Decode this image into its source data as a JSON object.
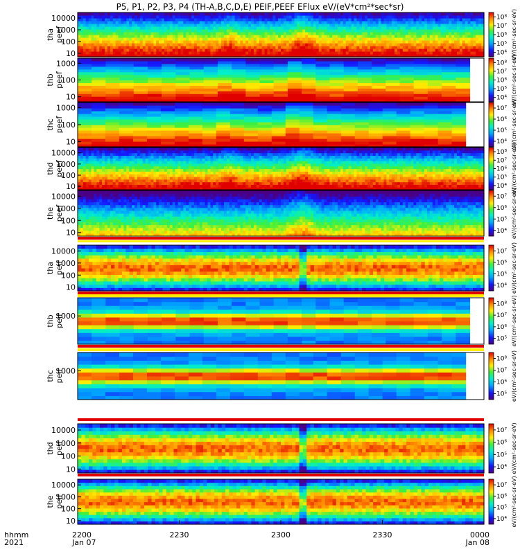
{
  "chart_data": {
    "type": "heatmap",
    "title": "P5, P1, P2, P3, P4 (TH-A,B,C,D,E) PEIF,PEEF EFlux eV/(eV*cm²*sec*sr)",
    "time_axis": {
      "ticks": [
        "2200",
        "2230",
        "2300",
        "2330",
        "0000"
      ],
      "tick_dates": [
        "Jan 07",
        "",
        "",
        "",
        "Jan 08"
      ],
      "range": [
        "2021-01-07 22:00",
        "2021-01-08 00:00"
      ],
      "label_lines": [
        "hhmm",
        "2021"
      ]
    },
    "energy_axis_scale": "log",
    "colormap": "rainbow (purple-blue-cyan-green-yellow-orange-red)",
    "panels": [
      {
        "probe": "tha",
        "product": "peef",
        "ylim": [
          5,
          30000
        ],
        "yticks": [
          "10",
          "100",
          "1000",
          "10000"
        ],
        "colorbar_ticks": [
          "10⁴",
          "10⁵",
          "10⁶",
          "10⁷",
          "10⁸"
        ],
        "colorbar_label": "eV/(cm²-sec-sr-eV)"
      },
      {
        "probe": "thb",
        "product": "peef",
        "ylim": [
          5,
          2000
        ],
        "yticks": [
          "10",
          "100",
          "1000"
        ],
        "colorbar_ticks": [
          "10⁴",
          "10⁵",
          "10⁶",
          "10⁷",
          "10⁸"
        ],
        "colorbar_label": "eV/(cm²-sec-sr-eV)"
      },
      {
        "probe": "thc",
        "product": "peef",
        "ylim": [
          5,
          2000
        ],
        "yticks": [
          "10",
          "100",
          "1000"
        ],
        "colorbar_ticks": [
          "10⁴",
          "10⁵",
          "10⁶",
          "10⁷"
        ],
        "colorbar_label": "eV/(cm²-sec-sr-eV)"
      },
      {
        "probe": "thd",
        "product": "peef",
        "ylim": [
          5,
          30000
        ],
        "yticks": [
          "10",
          "100",
          "1000",
          "10000"
        ],
        "colorbar_ticks": [
          "10⁴",
          "10⁵",
          "10⁶",
          "10⁷",
          "10⁸"
        ],
        "colorbar_label": "eV/(cm²-sec-sr-eV)"
      },
      {
        "probe": "the",
        "product": "peef",
        "ylim": [
          5,
          30000
        ],
        "yticks": [
          "10",
          "100",
          "1000",
          "10000"
        ],
        "colorbar_ticks": [
          "10⁴",
          "10⁵",
          "10⁶",
          "10⁷"
        ],
        "colorbar_label": "eV/(cm²-sec-sr-eV)"
      },
      {
        "probe": "tha",
        "product": "peif",
        "ylim": [
          5,
          30000
        ],
        "yticks": [
          "10",
          "100",
          "1000",
          "10000"
        ],
        "colorbar_ticks": [
          "10⁴",
          "10⁵",
          "10⁶",
          "10⁷"
        ],
        "colorbar_label": "eV/(cm²-sec-sr-eV)"
      },
      {
        "probe": "thb",
        "product": "peif",
        "ylim": [
          5,
          30000
        ],
        "yticks": [
          "1000"
        ],
        "colorbar_ticks": [
          "10⁵",
          "10⁶",
          "10⁷",
          "10⁸"
        ],
        "colorbar_label": "eV/(cm²-sec-sr-eV)"
      },
      {
        "probe": "thc",
        "product": "peif",
        "ylim": [
          5,
          30000
        ],
        "yticks": [
          "1000"
        ],
        "colorbar_ticks": [
          "10⁵",
          "10⁶",
          "10⁷",
          "10⁸"
        ],
        "colorbar_label": "eV/(cm²-sec-sr-eV)"
      },
      {
        "probe": "thd",
        "product": "peif",
        "ylim": [
          5,
          30000
        ],
        "yticks": [
          "10",
          "100",
          "1000",
          "10000"
        ],
        "colorbar_ticks": [
          "10⁴",
          "10⁵",
          "10⁶",
          "10⁷"
        ],
        "colorbar_label": "eV/(cm²-sec-sr-eV)"
      },
      {
        "probe": "the",
        "product": "peif",
        "ylim": [
          5,
          30000
        ],
        "yticks": [
          "10",
          "100",
          "1000",
          "10000"
        ],
        "colorbar_ticks": [
          "10⁴",
          "10⁵",
          "10⁶",
          "10⁷"
        ],
        "colorbar_label": "eV/(cm²-sec-sr-eV)"
      }
    ]
  }
}
